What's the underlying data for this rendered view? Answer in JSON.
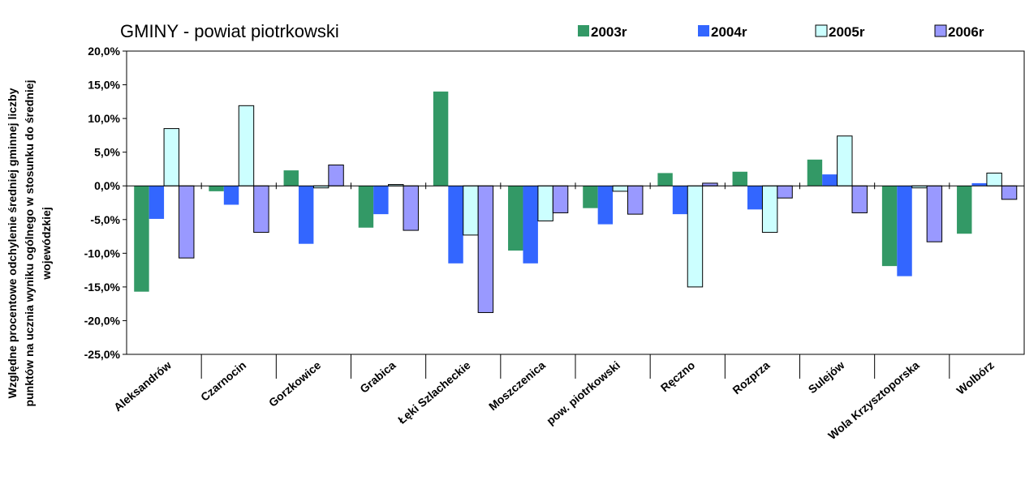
{
  "chart_data": {
    "type": "bar",
    "title": "GMINY -  powiat piotrkowski",
    "ylabel_lines": [
      "Względne procentowe odchylenie średniej gminnej liczby",
      "punktów na ucznia wyniku ogólnego w stosunku do średniej",
      "wojewódzkiej"
    ],
    "xlabel": "",
    "ylim": [
      -25,
      20
    ],
    "yticks": [
      "20,0%",
      "15,0%",
      "10,0%",
      "5,0%",
      "0,0%",
      "-5,0%",
      "-10,0%",
      "-15,0%",
      "-20,0%",
      "-25,0%"
    ],
    "ytick_values": [
      20,
      15,
      10,
      5,
      0,
      -5,
      -10,
      -15,
      -20,
      -25
    ],
    "grid": false,
    "legend_position": "top",
    "categories": [
      "Aleksandrów",
      "Czarnocin",
      "Gorzkowice",
      "Grabica",
      "Łęki Szlacheckie",
      "Moszczenica",
      "pow. piotrkowski",
      "Ręczno",
      "Rozprza",
      "Sulejów",
      "Wola Krzysztoporska",
      "Wolbórz"
    ],
    "series": [
      {
        "name": "2003r",
        "color": "#339966",
        "values": [
          -15.7,
          -0.8,
          2.3,
          -6.2,
          14.0,
          -9.6,
          -3.3,
          1.9,
          2.1,
          3.9,
          -11.9,
          -7.1
        ]
      },
      {
        "name": "2004r",
        "color": "#3366FF",
        "values": [
          -4.9,
          -2.8,
          -8.6,
          -4.2,
          -11.5,
          -11.5,
          -5.7,
          -4.2,
          -3.5,
          1.7,
          -13.4,
          0.4
        ]
      },
      {
        "name": "2005r",
        "color": "#CCFFFF",
        "values": [
          8.5,
          11.9,
          -0.3,
          0.2,
          -7.3,
          -5.2,
          -0.8,
          -15.0,
          -6.9,
          7.4,
          -0.3,
          1.9
        ]
      },
      {
        "name": "2006r",
        "color": "#9999FF",
        "values": [
          -10.7,
          -6.9,
          3.1,
          -6.6,
          -18.8,
          -4.0,
          -4.2,
          0.4,
          -1.8,
          -4.0,
          -8.3,
          -2.0
        ]
      }
    ]
  }
}
